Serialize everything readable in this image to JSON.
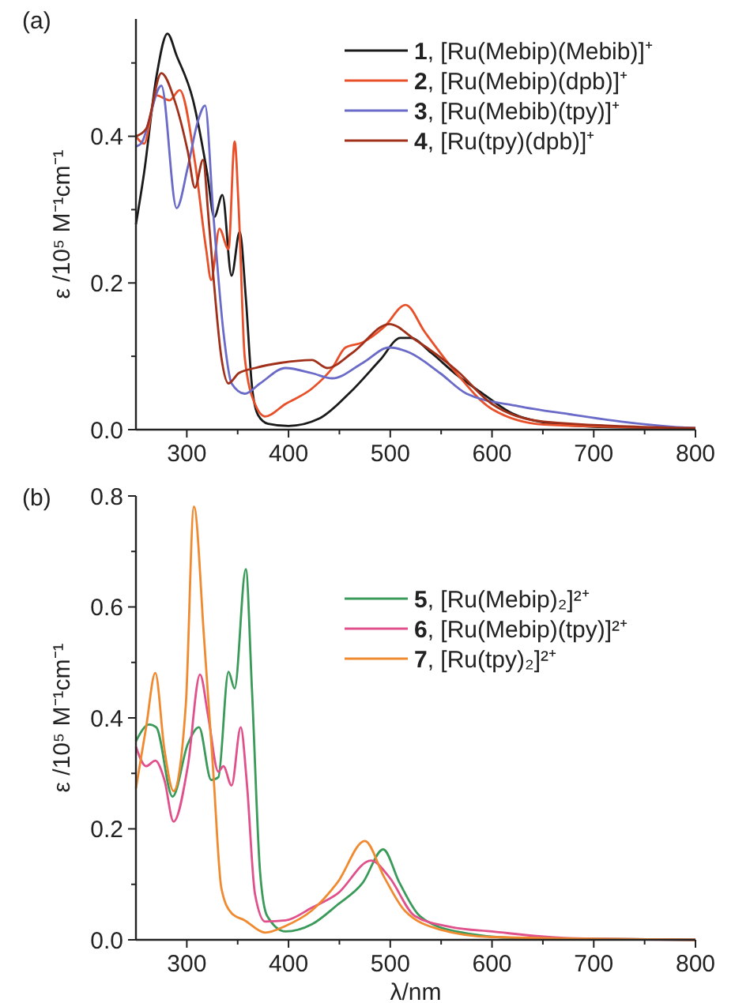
{
  "chart_data": [
    {
      "type": "line",
      "annotations": [
        "(a)"
      ],
      "ylabel": "ε /10⁵ M⁻¹cm⁻¹",
      "legend": "top right",
      "xlim": [
        250,
        800
      ],
      "ylim": [
        0,
        0.56
      ],
      "xticks": [
        300,
        {
          "value": 350,
          "label": null
        },
        400,
        {
          "value": 450,
          "label": null
        },
        500,
        {
          "value": 550,
          "label": null
        },
        600,
        {
          "value": 650,
          "label": null
        },
        700,
        {
          "value": 750,
          "label": null
        },
        800
      ],
      "yticks": [
        {
          "value": 0,
          "label": "0.0"
        },
        {
          "value": 0.1,
          "label": null
        },
        {
          "value": 0.2,
          "label": "0.2"
        },
        {
          "value": 0.3,
          "label": null
        },
        {
          "value": 0.4,
          "label": "0.4"
        },
        {
          "value": 0.5,
          "label": null
        }
      ],
      "series": [
        {
          "name": "1, [Ru(Mebip)(Mebib)]⁺",
          "color": "#1a1a1a",
          "x": [
            250,
            258,
            270,
            281,
            290,
            306,
            320,
            327,
            335,
            344,
            352,
            358,
            364,
            370,
            380,
            400,
            430,
            460,
            490,
            510,
            520,
            540,
            565,
            590,
            620,
            650,
            700,
            800
          ],
          "values": [
            0.28,
            0.35,
            0.48,
            0.54,
            0.51,
            0.45,
            0.35,
            0.29,
            0.32,
            0.21,
            0.27,
            0.18,
            0.06,
            0.02,
            0.008,
            0.005,
            0.015,
            0.05,
            0.095,
            0.125,
            0.125,
            0.105,
            0.075,
            0.05,
            0.022,
            0.01,
            0.004,
            0.002
          ]
        },
        {
          "name": "2, [Ru(Mebip)(dpb)]⁺",
          "color": "#e8502a",
          "x": [
            250,
            258,
            270,
            283,
            293,
            308,
            319,
            324,
            332,
            341,
            347,
            351,
            357,
            367,
            377,
            397,
            423,
            443,
            456,
            473,
            494,
            515,
            534,
            565,
            600,
            651,
            800
          ],
          "values": [
            0.4,
            0.39,
            0.456,
            0.449,
            0.463,
            0.365,
            0.246,
            0.204,
            0.274,
            0.246,
            0.393,
            0.302,
            0.098,
            0.035,
            0.018,
            0.035,
            0.056,
            0.084,
            0.112,
            0.119,
            0.14,
            0.17,
            0.133,
            0.077,
            0.028,
            0.007,
            0.002
          ]
        },
        {
          "name": "3, [Ru(Mebib)(tpy)]⁺",
          "color": "#6a6ac8",
          "x": [
            250,
            255,
            275,
            290,
            301,
            311,
            318,
            326,
            336,
            344,
            357,
            372,
            397,
            423,
            443,
            473,
            499,
            519,
            549,
            575,
            626,
            676,
            727,
            777,
            800
          ],
          "values": [
            0.386,
            0.39,
            0.469,
            0.302,
            0.358,
            0.421,
            0.442,
            0.295,
            0.133,
            0.063,
            0.049,
            0.063,
            0.084,
            0.077,
            0.07,
            0.091,
            0.112,
            0.105,
            0.077,
            0.049,
            0.032,
            0.021,
            0.011,
            0.004,
            0.002
          ]
        },
        {
          "name": "4, [Ru(tpy)(dpb)]⁺",
          "color": "#a0301a",
          "x": [
            250,
            260,
            275,
            288,
            301,
            308,
            316,
            321,
            326,
            334,
            341,
            351,
            367,
            392,
            423,
            438,
            463,
            499,
            524,
            565,
            600,
            651,
            800
          ],
          "values": [
            0.4,
            0.41,
            0.486,
            0.449,
            0.379,
            0.33,
            0.368,
            0.295,
            0.211,
            0.098,
            0.063,
            0.077,
            0.084,
            0.091,
            0.095,
            0.084,
            0.105,
            0.144,
            0.123,
            0.081,
            0.035,
            0.011,
            0.002
          ]
        }
      ]
    },
    {
      "type": "line",
      "annotations": [
        "(b)"
      ],
      "xlabel": "λ/nm",
      "ylabel": "ε /10⁵ M⁻¹cm⁻¹",
      "legend": "top right",
      "xlim": [
        250,
        800
      ],
      "ylim": [
        0,
        0.8
      ],
      "xticks": [
        300,
        {
          "value": 350,
          "label": null
        },
        400,
        {
          "value": 450,
          "label": null
        },
        500,
        {
          "value": 550,
          "label": null
        },
        600,
        {
          "value": 650,
          "label": null
        },
        700,
        {
          "value": 750,
          "label": null
        },
        800
      ],
      "yticks": [
        {
          "value": 0,
          "label": "0.0"
        },
        {
          "value": 0.1,
          "label": null
        },
        {
          "value": 0.2,
          "label": "0.2"
        },
        {
          "value": 0.3,
          "label": null
        },
        {
          "value": 0.4,
          "label": "0.4"
        },
        {
          "value": 0.5,
          "label": null
        },
        {
          "value": 0.6,
          "label": "0.6"
        },
        {
          "value": 0.7,
          "label": null
        },
        {
          "value": 0.8,
          "label": "0.8"
        }
      ],
      "series": [
        {
          "name": "5, [Ru(Mebip)₂]²⁺",
          "color": "#3a9a5a",
          "x": [
            250,
            263,
            270,
            286,
            301,
            312,
            324,
            331,
            341,
            347,
            358,
            364,
            372,
            379,
            397,
            423,
            448,
            473,
            493,
            509,
            529,
            565,
            626,
            800
          ],
          "values": [
            0.358,
            0.388,
            0.383,
            0.258,
            0.353,
            0.383,
            0.288,
            0.293,
            0.483,
            0.453,
            0.668,
            0.453,
            0.123,
            0.043,
            0.015,
            0.028,
            0.063,
            0.103,
            0.163,
            0.103,
            0.043,
            0.015,
            0.003,
            0
          ]
        },
        {
          "name": "6, [Ru(Mebip)(tpy)]²⁺",
          "color": "#e0508a",
          "x": [
            250,
            260,
            269,
            278,
            287,
            301,
            313,
            321,
            331,
            336,
            344,
            353,
            359,
            367,
            377,
            397,
            423,
            448,
            481,
            499,
            524,
            560,
            600,
            676,
            800
          ],
          "values": [
            0.348,
            0.313,
            0.323,
            0.288,
            0.213,
            0.313,
            0.478,
            0.403,
            0.303,
            0.313,
            0.278,
            0.383,
            0.283,
            0.083,
            0.033,
            0.035,
            0.058,
            0.083,
            0.143,
            0.113,
            0.043,
            0.023,
            0.015,
            0.003,
            0
          ]
        },
        {
          "name": "7, [Ru(tpy)₂]²⁺",
          "color": "#f08a30",
          "x": [
            250,
            260,
            269,
            278,
            287,
            299,
            307,
            317,
            326,
            334,
            344,
            357,
            377,
            397,
            423,
            448,
            475,
            494,
            514,
            550,
            600,
            800
          ],
          "values": [
            0.273,
            0.383,
            0.481,
            0.343,
            0.268,
            0.423,
            0.781,
            0.543,
            0.303,
            0.093,
            0.048,
            0.035,
            0.013,
            0.025,
            0.053,
            0.103,
            0.178,
            0.113,
            0.053,
            0.018,
            0.005,
            0
          ]
        }
      ]
    }
  ]
}
